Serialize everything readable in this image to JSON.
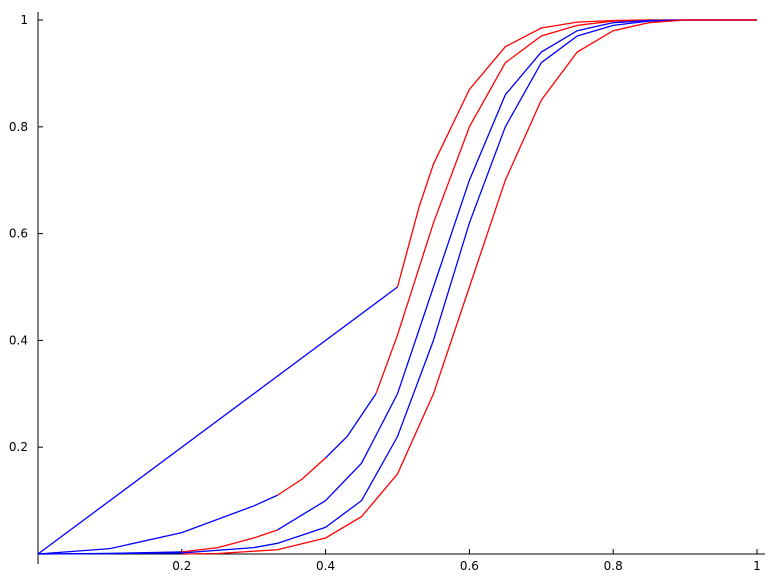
{
  "chart_data": {
    "type": "line",
    "xlim": [
      0,
      1
    ],
    "ylim": [
      0,
      1
    ],
    "xticks": [
      0.2,
      0.4,
      0.6,
      0.8,
      1
    ],
    "yticks": [
      0.2,
      0.4,
      0.6,
      0.8,
      1
    ],
    "series": [
      {
        "color": "#0000ff",
        "x": [
          0,
          0.5
        ],
        "values": [
          0,
          0.5
        ]
      },
      {
        "color": "#ff0000",
        "x": [
          0.5,
          0.53,
          0.55,
          0.6,
          0.65,
          0.7,
          0.75,
          0.8,
          0.85,
          1
        ],
        "values": [
          0.5,
          0.65,
          0.73,
          0.87,
          0.95,
          0.985,
          0.996,
          0.999,
          1,
          1
        ]
      },
      {
        "color": "#0000ff",
        "x": [
          0,
          0.1,
          0.2,
          0.3,
          0.333
        ],
        "values": [
          0,
          0.01,
          0.04,
          0.09,
          0.11
        ]
      },
      {
        "color": "#ff0000",
        "x": [
          0.333,
          0.367,
          0.4
        ],
        "values": [
          0.11,
          0.14,
          0.18
        ]
      },
      {
        "color": "#0000ff",
        "x": [
          0.4,
          0.43,
          0.45,
          0.47
        ],
        "values": [
          0.18,
          0.22,
          0.26,
          0.3
        ]
      },
      {
        "color": "#ff0000",
        "x": [
          0.47,
          0.5,
          0.55,
          0.6,
          0.65,
          0.7,
          0.75,
          0.8,
          0.85,
          1
        ],
        "values": [
          0.3,
          0.41,
          0.62,
          0.8,
          0.92,
          0.97,
          0.99,
          0.998,
          1,
          1
        ]
      },
      {
        "color": "#0000ff",
        "x": [
          0,
          0.1,
          0.2
        ],
        "values": [
          0,
          0.001,
          0.004
        ]
      },
      {
        "color": "#ff0000",
        "x": [
          0.2,
          0.25,
          0.3,
          0.333
        ],
        "values": [
          0.004,
          0.012,
          0.03,
          0.045
        ]
      },
      {
        "color": "#0000ff",
        "x": [
          0.333,
          0.4,
          0.45,
          0.5,
          0.55,
          0.6,
          0.65,
          0.7,
          0.75,
          0.8,
          0.85,
          0.9,
          1
        ],
        "values": [
          0.045,
          0.1,
          0.17,
          0.3,
          0.5,
          0.7,
          0.86,
          0.94,
          0.98,
          0.995,
          0.999,
          1,
          1
        ]
      },
      {
        "color": "#0000ff",
        "x": [
          0,
          0.2,
          0.3,
          0.333,
          0.4,
          0.45,
          0.5,
          0.55,
          0.6,
          0.65,
          0.7,
          0.75,
          0.8,
          0.85,
          0.9,
          1
        ],
        "values": [
          0,
          0.002,
          0.012,
          0.02,
          0.05,
          0.1,
          0.22,
          0.4,
          0.62,
          0.8,
          0.92,
          0.97,
          0.99,
          0.998,
          1,
          1
        ]
      },
      {
        "color": "#ff0000",
        "x": [
          0.2,
          0.25,
          0.333,
          0.4,
          0.45,
          0.5,
          0.55,
          0.6,
          0.65,
          0.7,
          0.75,
          0.8,
          0.85,
          0.9,
          1
        ],
        "values": [
          0,
          0.001,
          0.008,
          0.03,
          0.07,
          0.15,
          0.3,
          0.5,
          0.7,
          0.85,
          0.94,
          0.98,
          0.995,
          1,
          1
        ]
      }
    ]
  }
}
